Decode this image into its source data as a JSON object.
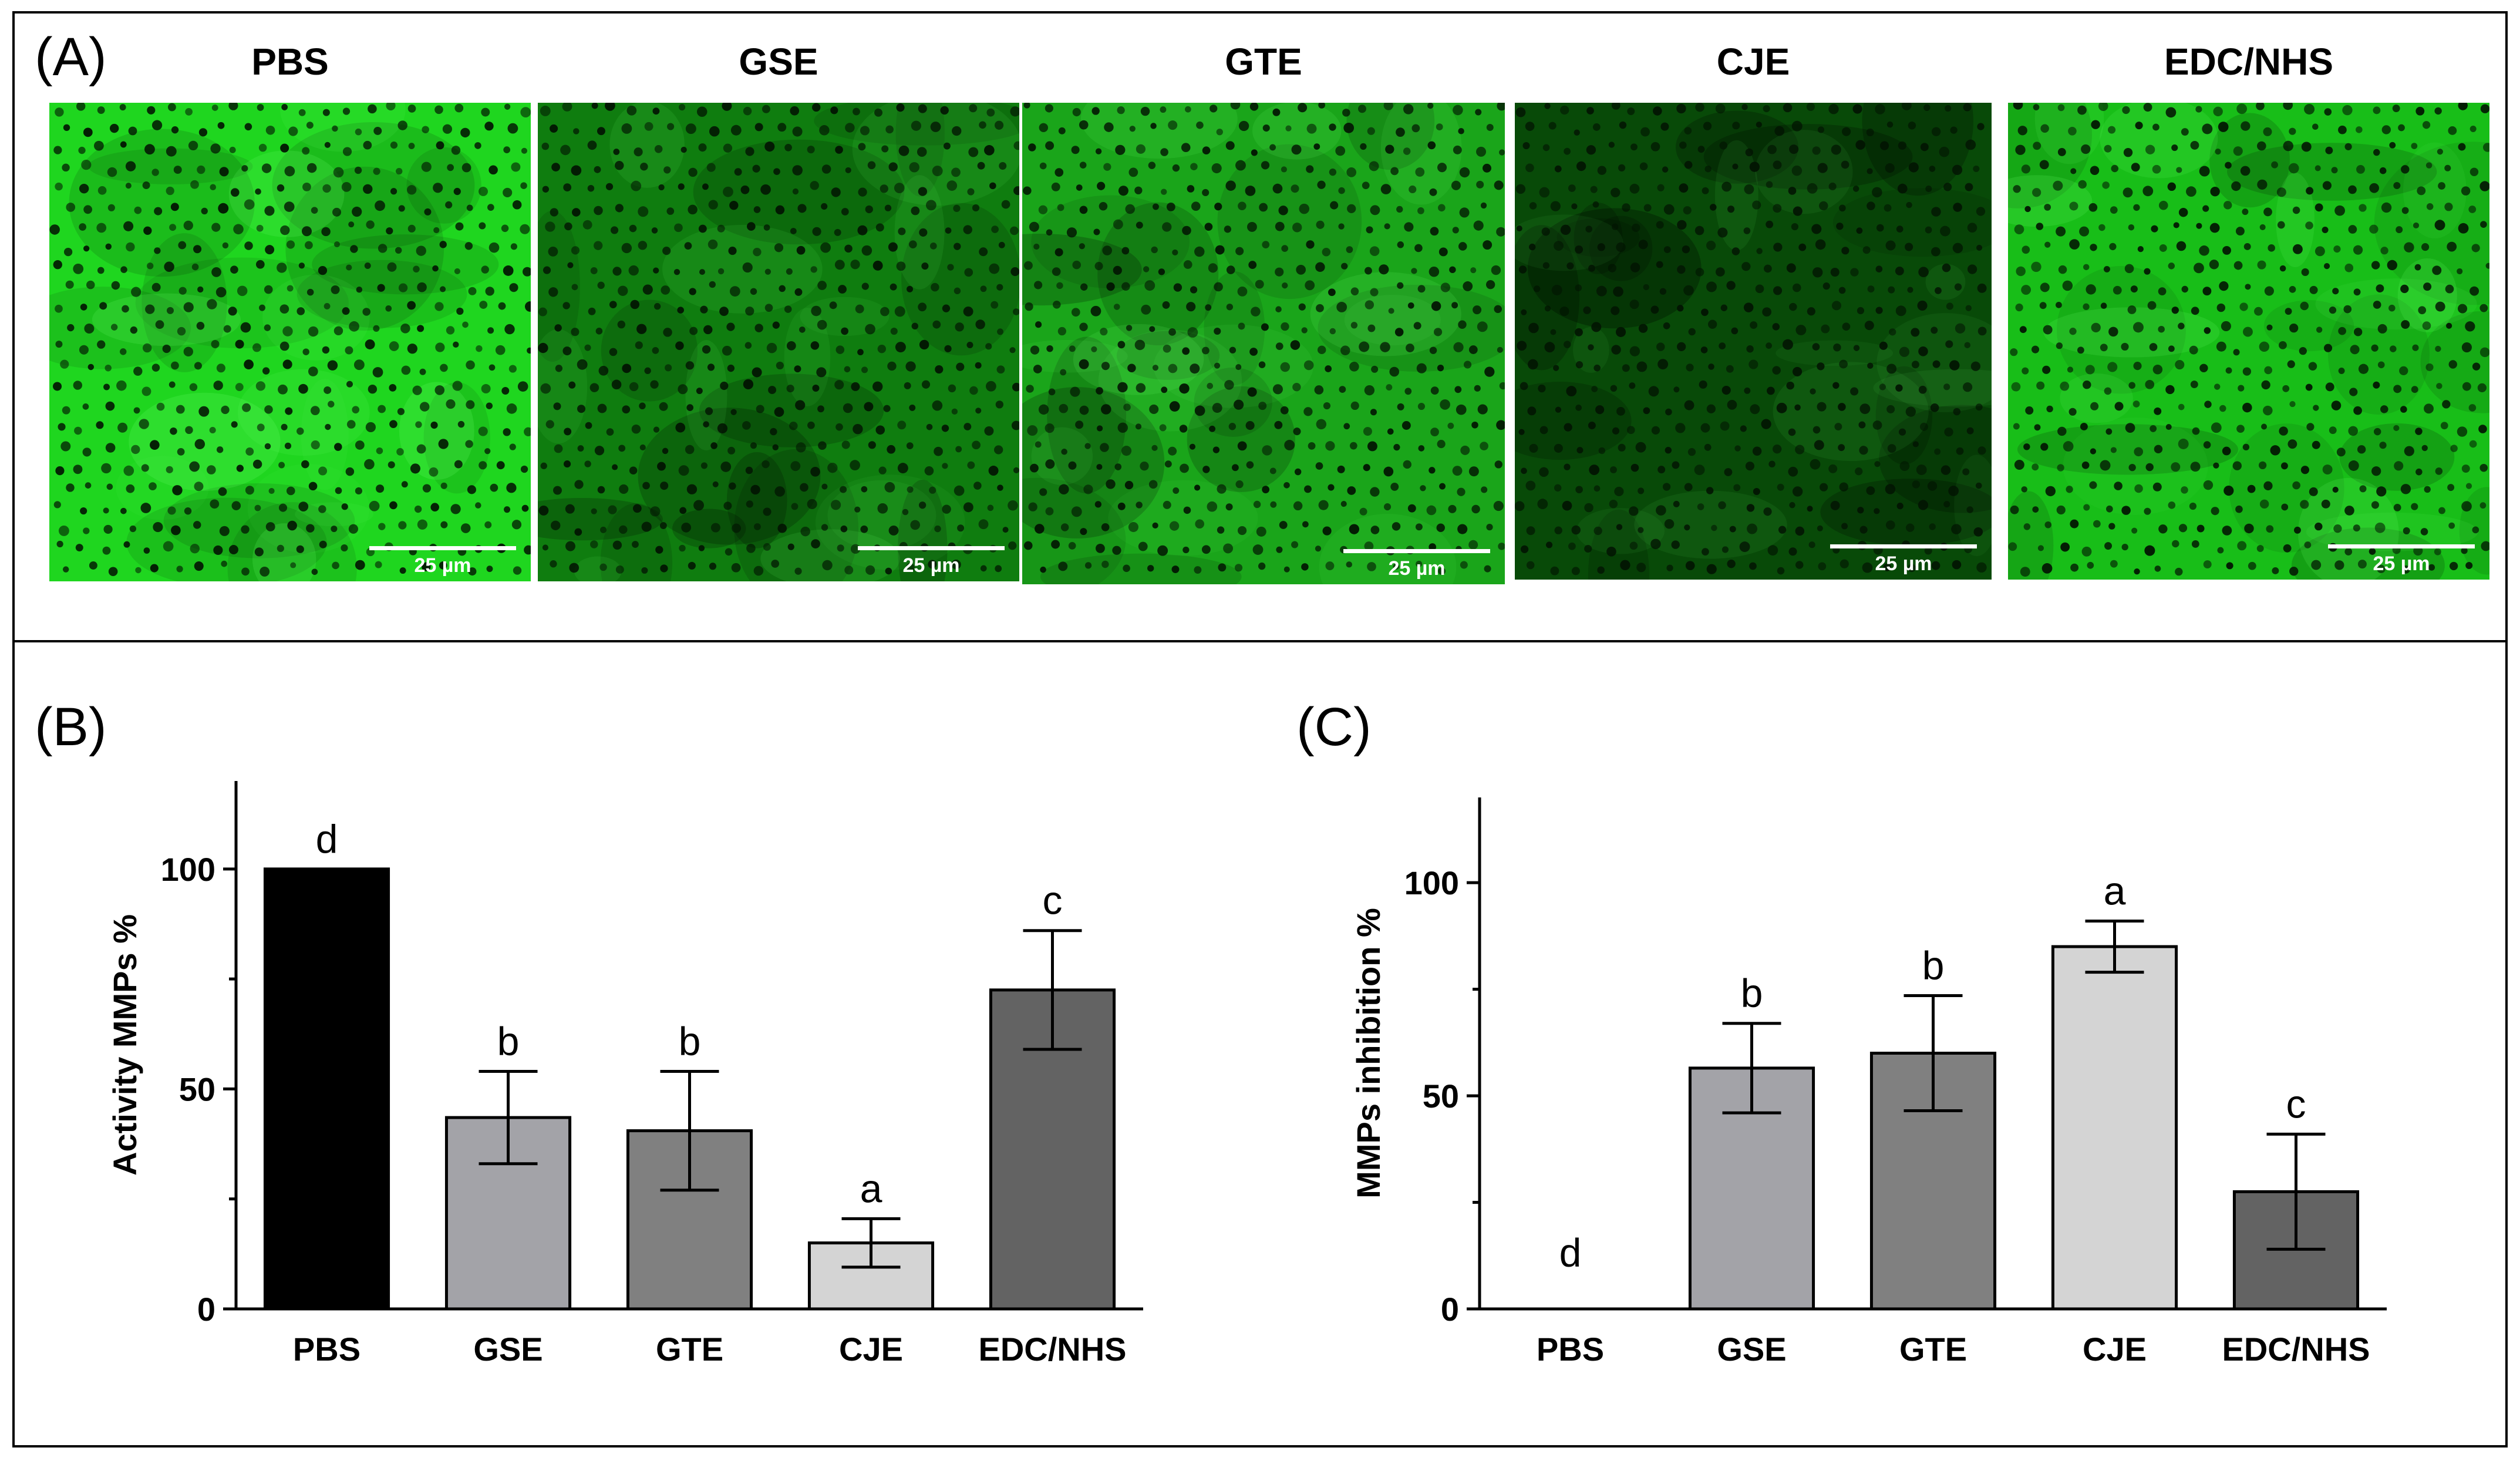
{
  "panel_a": {
    "label": "(A)",
    "images": [
      {
        "title": "PBS",
        "scale_bar": "25 µm",
        "brightness": 0.95,
        "tone": "#1fd61f"
      },
      {
        "title": "GSE",
        "scale_bar": "25 µm",
        "brightness": 0.45,
        "tone": "#0f7d0f"
      },
      {
        "title": "GTE",
        "scale_bar": "25 µm",
        "brightness": 0.6,
        "tone": "#1aa51a"
      },
      {
        "title": "CJE",
        "scale_bar": "25 µm",
        "brightness": 0.2,
        "tone": "#084a08"
      },
      {
        "title": "EDC/NHS",
        "scale_bar": "25 µm",
        "brightness": 0.8,
        "tone": "#18be18"
      }
    ]
  },
  "chart_data": [
    {
      "panel_label": "(B)",
      "type": "bar",
      "ylabel": "Activity MMPs %",
      "xlabel": "",
      "categories": [
        "PBS",
        "GSE",
        "GTE",
        "CJE",
        "EDC/NHS"
      ],
      "values": [
        100,
        43.5,
        40.5,
        15,
        72.5
      ],
      "errors": [
        0,
        10.5,
        13.5,
        5.5,
        13.5
      ],
      "letters": [
        "d",
        "b",
        "b",
        "a",
        "c"
      ],
      "colors": [
        "#000000",
        "#a3a3a8",
        "#808080",
        "#d4d4d4",
        "#636363"
      ],
      "ylim": [
        0,
        120
      ],
      "yticks": [
        0,
        50,
        100
      ],
      "grid": false
    },
    {
      "panel_label": "(C)",
      "type": "bar",
      "ylabel": "MMPs inhibition %",
      "xlabel": "",
      "categories": [
        "PBS",
        "GSE",
        "GTE",
        "CJE",
        "EDC/NHS"
      ],
      "values": [
        0,
        56.5,
        60,
        85,
        27.5
      ],
      "errors": [
        0,
        10.5,
        13.5,
        6,
        13.5
      ],
      "letters": [
        "d",
        "b",
        "b",
        "a",
        "c"
      ],
      "colors": [
        "#000000",
        "#a3a3a8",
        "#808080",
        "#d4d4d4",
        "#636363"
      ],
      "ylim": [
        0,
        120
      ],
      "yticks": [
        0,
        50,
        100
      ],
      "grid": false
    }
  ]
}
